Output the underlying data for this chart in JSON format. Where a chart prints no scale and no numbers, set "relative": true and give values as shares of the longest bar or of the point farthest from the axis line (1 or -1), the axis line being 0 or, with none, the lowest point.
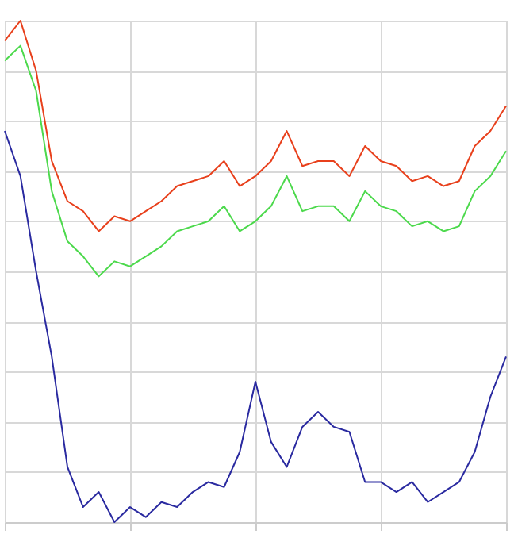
{
  "chart_data": {
    "type": "line",
    "relative": true,
    "grid": true,
    "marker": "none",
    "line_style": "solid",
    "categories": [
      null,
      null,
      null,
      null,
      null,
      null,
      null,
      null,
      null,
      null,
      null,
      null,
      null,
      null,
      null,
      null,
      null,
      null,
      null,
      null,
      null,
      null,
      null,
      null,
      null,
      null,
      null,
      null,
      null,
      null,
      null,
      null,
      null
    ],
    "series": [
      {
        "color": "#e8401c",
        "values": [
          0.96,
          1.0,
          0.9,
          0.72,
          0.64,
          0.62,
          0.58,
          0.61,
          0.6,
          0.62,
          0.64,
          0.67,
          0.68,
          0.69,
          0.72,
          0.67,
          0.69,
          0.72,
          0.78,
          0.71,
          0.72,
          0.72,
          0.69,
          0.75,
          0.72,
          0.71,
          0.68,
          0.69,
          0.67,
          0.68,
          0.75,
          0.78,
          0.83
        ]
      },
      {
        "color": "#4cd94c",
        "values": [
          0.92,
          0.95,
          0.86,
          0.66,
          0.56,
          0.53,
          0.49,
          0.52,
          0.51,
          0.53,
          0.55,
          0.58,
          0.59,
          0.6,
          0.63,
          0.58,
          0.6,
          0.63,
          0.69,
          0.62,
          0.63,
          0.63,
          0.6,
          0.66,
          0.63,
          0.62,
          0.59,
          0.6,
          0.58,
          0.59,
          0.66,
          0.69,
          0.74
        ]
      },
      {
        "color": "#2a2aa0",
        "values": [
          0.78,
          0.69,
          0.5,
          0.33,
          0.11,
          0.03,
          0.06,
          0,
          0.03,
          0.01,
          0.04,
          0.03,
          0.06,
          0.08,
          0.07,
          0.14,
          0.28,
          0.16,
          0.11,
          0.19,
          0.22,
          0.19,
          0.18,
          0.08,
          0.08,
          0.06,
          0.08,
          0.04,
          0.06,
          0.08,
          0.14,
          0.25,
          0.33
        ]
      }
    ]
  }
}
